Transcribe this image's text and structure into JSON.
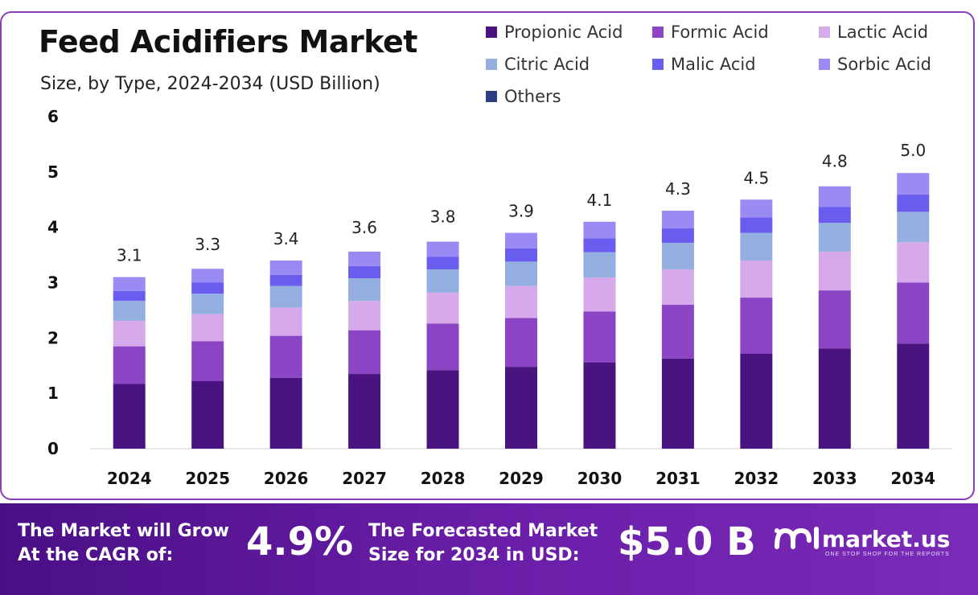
{
  "chart_data": {
    "type": "bar",
    "stacked": true,
    "title": "Feed Acidifiers Market",
    "subtitle": "Size, by Type, 2024-2034 (USD Billion)",
    "categories": [
      "2024",
      "2025",
      "2026",
      "2027",
      "2028",
      "2029",
      "2030",
      "2031",
      "2032",
      "2033",
      "2034"
    ],
    "totals": [
      3.1,
      3.3,
      3.4,
      3.6,
      3.8,
      3.9,
      4.1,
      4.3,
      4.5,
      4.8,
      5.0
    ],
    "total_labels": [
      "3.1",
      "3.3",
      "3.4",
      "3.6",
      "3.8",
      "3.9",
      "4.1",
      "4.3",
      "4.5",
      "4.8",
      "5.0"
    ],
    "series": [
      {
        "name": "Propionic Acid",
        "color": "#4a1480",
        "values": [
          1.17,
          1.22,
          1.28,
          1.35,
          1.42,
          1.48,
          1.56,
          1.63,
          1.72,
          1.81,
          1.9
        ]
      },
      {
        "name": "Formic Acid",
        "color": "#8b45c4",
        "values": [
          0.68,
          0.72,
          0.76,
          0.79,
          0.84,
          0.88,
          0.92,
          0.97,
          1.01,
          1.05,
          1.1
        ]
      },
      {
        "name": "Lactic Acid",
        "color": "#d6a9ea",
        "values": [
          0.46,
          0.49,
          0.51,
          0.53,
          0.56,
          0.58,
          0.61,
          0.64,
          0.67,
          0.7,
          0.73
        ]
      },
      {
        "name": "Citric Acid",
        "color": "#94aee0",
        "values": [
          0.36,
          0.37,
          0.39,
          0.41,
          0.42,
          0.44,
          0.46,
          0.48,
          0.5,
          0.52,
          0.55
        ]
      },
      {
        "name": "Malic Acid",
        "color": "#6b5cf0",
        "values": [
          0.18,
          0.2,
          0.2,
          0.22,
          0.23,
          0.24,
          0.25,
          0.26,
          0.28,
          0.29,
          0.31
        ]
      },
      {
        "name": "Sorbic Acid",
        "color": "#9a8af4",
        "values": [
          0.25,
          0.25,
          0.26,
          0.26,
          0.27,
          0.28,
          0.3,
          0.32,
          0.32,
          0.37,
          0.39
        ]
      },
      {
        "name": "Others",
        "color": "#2d3f82",
        "values": [
          0,
          0,
          0,
          0,
          0,
          0,
          0,
          0,
          0,
          0,
          0
        ]
      }
    ],
    "yticks": [
      "0",
      "1",
      "2",
      "3",
      "4",
      "5",
      "6"
    ],
    "ylim": [
      0,
      6
    ],
    "legend_position": "top-right",
    "grid": false
  },
  "footer": {
    "cagr_text_line1": "The Market will Grow",
    "cagr_text_line2": "At the CAGR of:",
    "cagr_value": "4.9%",
    "forecast_text_line1": "The Forecasted Market",
    "forecast_text_line2": "Size for 2034 in USD:",
    "forecast_value": "$5.0 B",
    "brand_name": "market.us",
    "brand_tagline": "ONE STOP SHOP FOR THE REPORTS"
  }
}
